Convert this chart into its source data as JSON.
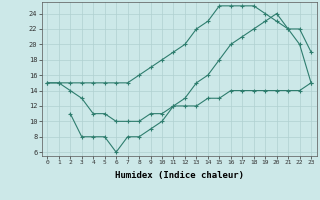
{
  "xlabel": "Humidex (Indice chaleur)",
  "xlim": [
    -0.5,
    23.5
  ],
  "ylim": [
    5.5,
    25.5
  ],
  "yticks": [
    6,
    8,
    10,
    12,
    14,
    16,
    18,
    20,
    22,
    24
  ],
  "xticks": [
    0,
    1,
    2,
    3,
    4,
    5,
    6,
    7,
    8,
    9,
    10,
    11,
    12,
    13,
    14,
    15,
    16,
    17,
    18,
    19,
    20,
    21,
    22,
    23
  ],
  "background_color": "#cce8e8",
  "grid_color": "#b0d0d0",
  "line_color": "#2e7d6e",
  "line1_x": [
    0,
    1,
    2,
    3,
    4,
    5,
    6,
    7,
    8,
    9,
    10,
    11,
    12,
    13,
    14,
    15,
    16,
    17,
    18,
    19,
    20,
    21,
    22,
    23
  ],
  "line1_y": [
    15,
    15,
    15,
    15,
    15,
    15,
    15,
    15,
    16,
    17,
    18,
    19,
    20,
    22,
    23,
    25,
    25,
    25,
    25,
    24,
    23,
    22,
    20,
    15
  ],
  "line2_x": [
    2,
    3,
    4,
    5,
    6,
    7,
    8,
    9,
    10,
    11,
    12,
    13,
    14,
    15,
    16,
    17,
    18,
    19,
    20,
    21,
    22,
    23
  ],
  "line2_y": [
    11,
    8,
    8,
    8,
    6,
    8,
    8,
    9,
    10,
    12,
    13,
    15,
    16,
    18,
    20,
    21,
    22,
    23,
    24,
    22,
    22,
    19
  ],
  "line3_x": [
    0,
    1,
    2,
    3,
    4,
    5,
    6,
    7,
    8,
    9,
    10,
    11,
    12,
    13,
    14,
    15,
    16,
    17,
    18,
    19,
    20,
    21,
    22,
    23
  ],
  "line3_y": [
    15,
    15,
    14,
    13,
    11,
    11,
    10,
    10,
    10,
    11,
    11,
    12,
    12,
    12,
    13,
    13,
    14,
    14,
    14,
    14,
    14,
    14,
    14,
    15
  ]
}
